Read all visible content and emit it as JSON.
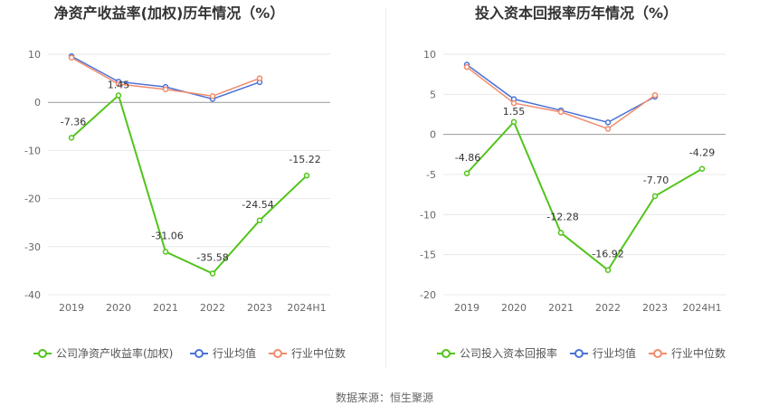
{
  "chart_data": [
    {
      "type": "line",
      "title": "净资产收益率(加权)历年情况（%）",
      "categories": [
        "2019",
        "2020",
        "2021",
        "2022",
        "2023",
        "2024H1"
      ],
      "ylim": [
        -40,
        10
      ],
      "yticks": [
        10,
        0,
        -10,
        -20,
        -30,
        -40
      ],
      "grid": true,
      "legend_position": "bottom",
      "series": [
        {
          "name": "公司净资产收益率(加权)",
          "color": "#52c41a",
          "values": [
            -7.36,
            1.45,
            -31.06,
            -35.58,
            -24.54,
            -15.22
          ],
          "labels": [
            "-7.36",
            "1.45",
            "-31.06",
            "-35.58",
            "-24.54",
            "-15.22"
          ]
        },
        {
          "name": "行业均值",
          "color": "#4a72d8",
          "values": [
            9.6,
            4.3,
            3.2,
            0.7,
            4.2,
            null
          ]
        },
        {
          "name": "行业中位数",
          "color": "#f28b6c",
          "values": [
            9.3,
            3.8,
            2.7,
            1.3,
            5.0,
            null
          ]
        }
      ]
    },
    {
      "type": "line",
      "title": "投入资本回报率历年情况（%）",
      "categories": [
        "2019",
        "2020",
        "2021",
        "2022",
        "2023",
        "2024H1"
      ],
      "ylim": [
        -20,
        10
      ],
      "yticks": [
        10,
        5,
        0,
        -5,
        -10,
        -15,
        -20
      ],
      "grid": true,
      "legend_position": "bottom",
      "series": [
        {
          "name": "公司投入资本回报率",
          "color": "#52c41a",
          "values": [
            -4.86,
            1.55,
            -12.28,
            -16.92,
            -7.7,
            -4.29
          ],
          "labels": [
            "-4.86",
            "1.55",
            "-12.28",
            "-16.92",
            "-7.70",
            "-4.29"
          ]
        },
        {
          "name": "行业均值",
          "color": "#4a72d8",
          "values": [
            8.7,
            4.4,
            3.0,
            1.5,
            4.7,
            null
          ]
        },
        {
          "name": "行业中位数",
          "color": "#f28b6c",
          "values": [
            8.4,
            3.9,
            2.8,
            0.7,
            4.9,
            null
          ]
        }
      ]
    }
  ],
  "footer": {
    "source": "数据来源：恒生聚源"
  }
}
